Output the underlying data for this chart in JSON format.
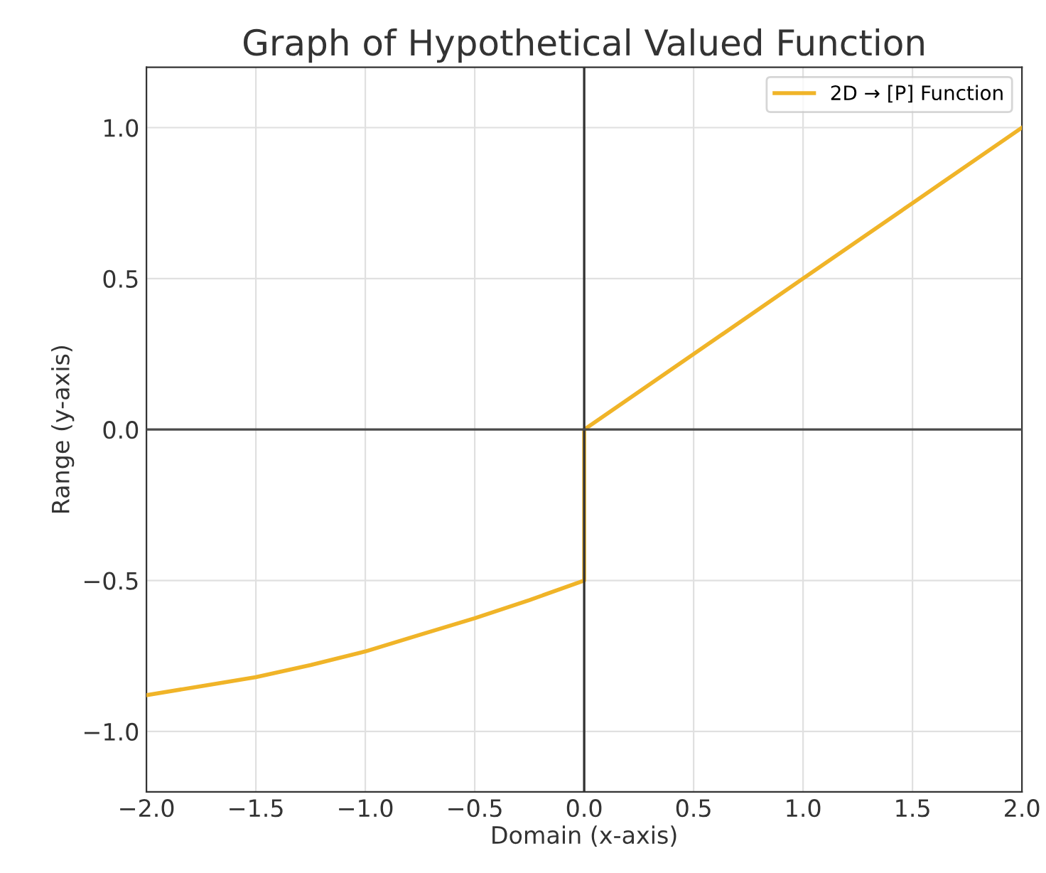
{
  "chart_data": {
    "type": "line",
    "title": "Graph of Hypothetical Valued Function",
    "xlabel": "Domain (x-axis)",
    "ylabel": "Range (y-axis)",
    "series": [
      {
        "name": "2D → [P] Function",
        "color": "#f0b428",
        "x": [
          -2.0,
          -1.75,
          -1.5,
          -1.25,
          -1.0,
          -0.75,
          -0.5,
          -0.25,
          0.0,
          0.0,
          0.5,
          1.0,
          1.5,
          2.0
        ],
        "values": [
          -0.88,
          -0.85,
          -0.82,
          -0.78,
          -0.735,
          -0.68,
          -0.625,
          -0.565,
          -0.5,
          0.0,
          0.25,
          0.5,
          0.75,
          1.0
        ]
      }
    ],
    "xlim": [
      -2.0,
      2.0
    ],
    "ylim": [
      -1.2,
      1.2
    ],
    "xticks": [
      {
        "value": -2.0,
        "label": "−2.0"
      },
      {
        "value": -1.5,
        "label": "−1.5"
      },
      {
        "value": -1.0,
        "label": "−1.0"
      },
      {
        "value": -0.5,
        "label": "−0.5"
      },
      {
        "value": 0.0,
        "label": "0.0"
      },
      {
        "value": 0.5,
        "label": "0.5"
      },
      {
        "value": 1.0,
        "label": "1.0"
      },
      {
        "value": 1.5,
        "label": "1.5"
      },
      {
        "value": 2.0,
        "label": "2.0"
      }
    ],
    "yticks": [
      {
        "value": -1.0,
        "label": "−1.0"
      },
      {
        "value": -0.5,
        "label": "−0.5"
      },
      {
        "value": 0.0,
        "label": "0.0"
      },
      {
        "value": 0.5,
        "label": "0.5"
      },
      {
        "value": 1.0,
        "label": "1.0"
      }
    ],
    "ref_lines": [
      {
        "axis": "x",
        "value": 0.0,
        "color": "#333333"
      },
      {
        "axis": "y",
        "value": 0.0,
        "color": "#4a4a4a"
      }
    ],
    "grid": true,
    "legend": "top right",
    "line_style": "solid",
    "marker": "none"
  }
}
